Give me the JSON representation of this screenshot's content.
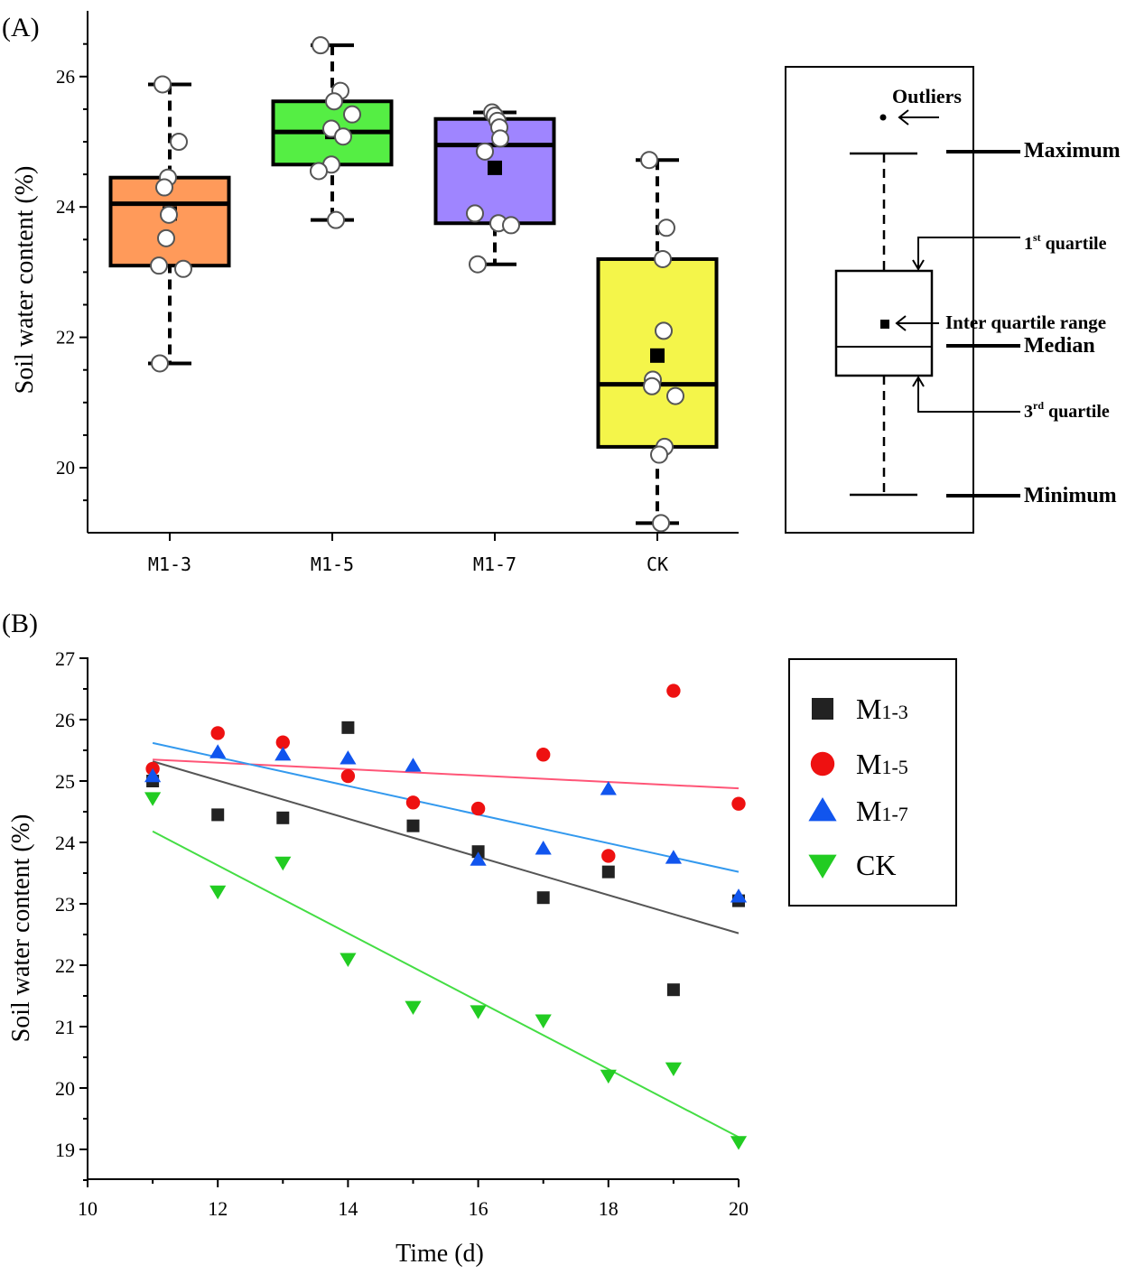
{
  "chart_data": [
    {
      "type": "box",
      "panel_label": "(A)",
      "ylabel": "Soil water content (%)",
      "ylim": [
        19.0,
        27.0
      ],
      "yticks": [
        20,
        22,
        24,
        26
      ],
      "categories": [
        "M1-3",
        "M1-5",
        "M1-7",
        "CK"
      ],
      "colors": [
        "#ff9a5a",
        "#55ee44",
        "#9f85ff",
        "#f4f54a"
      ],
      "boxes": [
        {
          "min": 21.6,
          "q1": 23.1,
          "median": 24.05,
          "q3": 24.45,
          "max": 25.88,
          "mean": 23.9
        },
        {
          "min": 23.8,
          "q1": 24.65,
          "median": 25.15,
          "q3": 25.62,
          "max": 26.48,
          "mean": 25.15
        },
        {
          "min": 23.12,
          "q1": 23.75,
          "median": 24.95,
          "q3": 25.35,
          "max": 25.45,
          "mean": 24.6
        },
        {
          "min": 19.15,
          "q1": 20.32,
          "median": 21.28,
          "q3": 23.2,
          "max": 24.72,
          "mean": 21.72
        }
      ],
      "points": [
        [
          25.88,
          25.0,
          24.45,
          24.3,
          23.88,
          23.52,
          23.1,
          23.05,
          21.6
        ],
        [
          26.48,
          25.78,
          25.62,
          25.42,
          25.2,
          25.08,
          24.65,
          24.55,
          23.8
        ],
        [
          25.45,
          25.4,
          25.32,
          25.22,
          25.05,
          24.85,
          23.9,
          23.75,
          23.72,
          23.12
        ],
        [
          24.72,
          23.68,
          23.2,
          22.1,
          21.35,
          21.25,
          21.1,
          20.32,
          20.2,
          19.15
        ]
      ],
      "legend": {
        "labels": {
          "outliers": "Outliers",
          "maximum": "Maximum",
          "q1_a": "1",
          "q1_sup": "st",
          "q1_b": " quartile",
          "iqr": "Inter quartile range",
          "median": "Median",
          "q3_a": "3",
          "q3_sup": "rd",
          "q3_b": " quartile",
          "minimum": "Minimum"
        }
      }
    },
    {
      "type": "scatter",
      "panel_label": "(B)",
      "xlabel": "Time (d)",
      "ylabel": "Soil water content (%)",
      "xlim": [
        10,
        20
      ],
      "ylim": [
        18.5,
        27
      ],
      "xticks": [
        10,
        12,
        14,
        16,
        18,
        20
      ],
      "yticks": [
        19,
        20,
        21,
        22,
        23,
        24,
        25,
        26,
        27
      ],
      "x": [
        11,
        12,
        13,
        14,
        15,
        16,
        17,
        18,
        19,
        20
      ],
      "series": [
        {
          "name": "M",
          "sub": "1-3",
          "marker": "square",
          "color": "#222222",
          "line_color": "#555555",
          "values": [
            25.0,
            24.45,
            24.4,
            25.87,
            24.27,
            23.85,
            23.1,
            23.52,
            21.6,
            23.05
          ],
          "fit": [
            25.32,
            22.52
          ]
        },
        {
          "name": "M",
          "sub": "1-5",
          "marker": "circle",
          "color": "#ee1111",
          "line_color": "#ff5577",
          "values": [
            25.2,
            25.78,
            25.63,
            25.08,
            24.65,
            24.55,
            25.43,
            23.78,
            26.47,
            24.63
          ],
          "fit": [
            25.35,
            24.88
          ]
        },
        {
          "name": "M",
          "sub": "1-7",
          "marker": "triangle-up",
          "color": "#1155ee",
          "line_color": "#3399ee",
          "values": [
            25.08,
            25.47,
            25.43,
            25.37,
            25.25,
            23.72,
            23.9,
            24.87,
            23.75,
            23.12
          ],
          "fit": [
            25.62,
            23.52
          ]
        },
        {
          "name": "CK",
          "sub": "",
          "marker": "triangle-down",
          "color": "#22cc22",
          "line_color": "#44dd44",
          "values": [
            24.72,
            23.2,
            23.67,
            22.1,
            21.32,
            21.25,
            21.1,
            20.2,
            20.32,
            19.12
          ],
          "fit": [
            24.18,
            19.2
          ]
        }
      ]
    }
  ]
}
